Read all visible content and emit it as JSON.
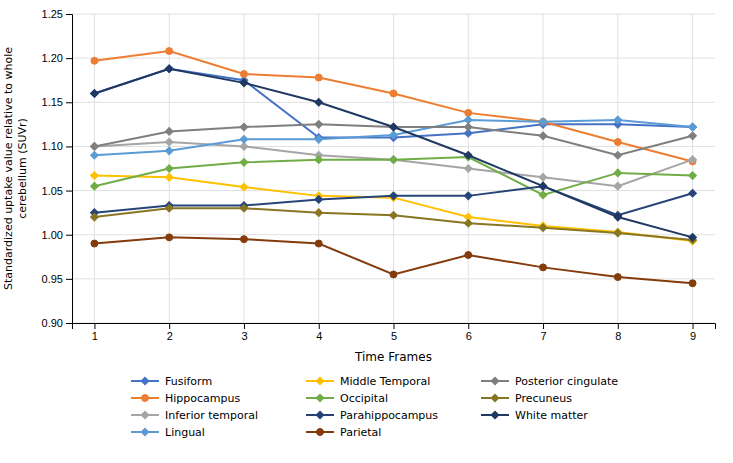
{
  "chart_data": {
    "type": "line",
    "x": [
      1,
      2,
      3,
      4,
      5,
      6,
      7,
      8,
      9
    ],
    "xlim": [
      0.7,
      9.3
    ],
    "xticks": [
      1,
      2,
      3,
      4,
      5,
      6,
      7,
      8,
      9
    ],
    "ylim": [
      0.9,
      1.25
    ],
    "yticks": [
      {
        "value": 0.9,
        "label": "0.90"
      },
      {
        "value": 0.95,
        "label": "0.95"
      },
      {
        "value": 1.0,
        "label": "1.00"
      },
      {
        "value": 1.05,
        "label": "1.05"
      },
      {
        "value": 1.1,
        "label": "1.10"
      },
      {
        "value": 1.15,
        "label": "1.15"
      },
      {
        "value": 1.2,
        "label": "1.20"
      },
      {
        "value": 1.25,
        "label": "1.25"
      }
    ],
    "x_label": "Time Frames",
    "y_label": "Standardized uptake value relative to whole\ncerebellum (SUVr)",
    "grid": true,
    "legend": "bottom",
    "series": [
      {
        "name": "Fusiform",
        "color": "#4472C4",
        "marker": "diamond",
        "values": [
          1.16,
          1.188,
          1.175,
          1.11,
          1.11,
          1.115,
          1.125,
          1.125,
          1.122
        ]
      },
      {
        "name": "Hippocampus",
        "color": "#ED7D31",
        "marker": "circle",
        "values": [
          1.197,
          1.208,
          1.182,
          1.178,
          1.16,
          1.138,
          1.128,
          1.105,
          1.083
        ]
      },
      {
        "name": "Inferior temporal",
        "color": "#A5A5A5",
        "marker": "diamond",
        "values": [
          1.1,
          1.105,
          1.1,
          1.09,
          1.085,
          1.075,
          1.065,
          1.055,
          1.085
        ]
      },
      {
        "name": "Lingual",
        "color": "#5B9BD5",
        "marker": "diamond",
        "values": [
          1.09,
          1.095,
          1.108,
          1.108,
          1.113,
          1.13,
          1.128,
          1.13,
          1.122
        ]
      },
      {
        "name": "Middle Temporal",
        "color": "#FFC000",
        "marker": "diamond",
        "values": [
          1.067,
          1.065,
          1.054,
          1.044,
          1.042,
          1.02,
          1.01,
          1.003,
          0.993
        ]
      },
      {
        "name": "Occipital",
        "color": "#70AD47",
        "marker": "diamond",
        "values": [
          1.055,
          1.075,
          1.082,
          1.085,
          1.085,
          1.088,
          1.045,
          1.07,
          1.067
        ]
      },
      {
        "name": "Parahippocampus",
        "color": "#264478",
        "marker": "diamond",
        "values": [
          1.025,
          1.033,
          1.033,
          1.04,
          1.044,
          1.044,
          1.055,
          1.022,
          1.047
        ]
      },
      {
        "name": "Parietal",
        "color": "#843C0C",
        "marker": "circle",
        "values": [
          0.99,
          0.997,
          0.995,
          0.99,
          0.955,
          0.977,
          0.963,
          0.952,
          0.945
        ]
      },
      {
        "name": "Posterior cingulate",
        "color": "#7F7F7F",
        "marker": "diamond",
        "values": [
          1.1,
          1.117,
          1.122,
          1.125,
          1.122,
          1.122,
          1.112,
          1.09,
          1.112
        ]
      },
      {
        "name": "Precuneus",
        "color": "#897622",
        "marker": "diamond",
        "values": [
          1.02,
          1.03,
          1.03,
          1.025,
          1.022,
          1.013,
          1.008,
          1.002,
          0.994
        ]
      },
      {
        "name": "White matter",
        "color": "#1F3864",
        "marker": "diamond",
        "values": [
          1.16,
          1.188,
          1.172,
          1.15,
          1.122,
          1.09,
          1.055,
          1.02,
          0.997
        ]
      }
    ]
  }
}
